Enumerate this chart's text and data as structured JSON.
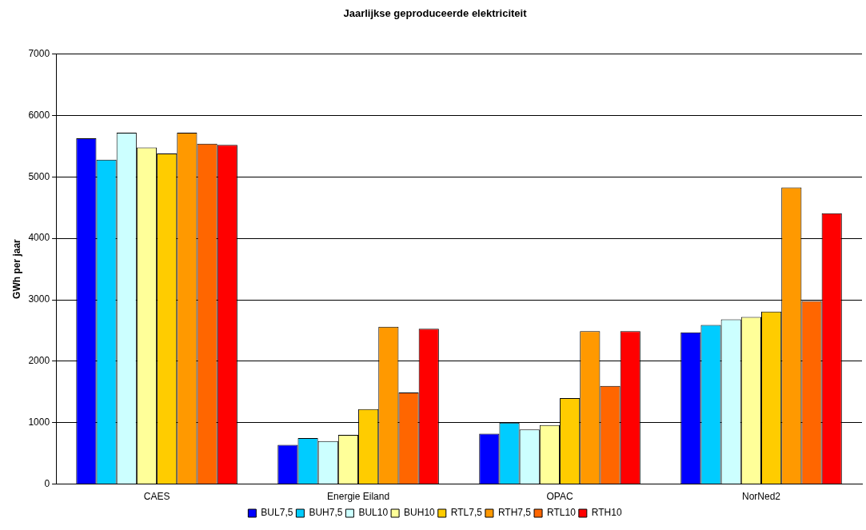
{
  "chart_data": {
    "type": "bar",
    "title": "Jaarlijkse geproduceerde elektriciteit",
    "ylabel": "GWh per jaar",
    "categories": [
      "CAES",
      "Energie Eiland",
      "OPAC",
      "NorNed2"
    ],
    "series": [
      {
        "name": "BUL7,5",
        "color": "#0000ff",
        "values": [
          5630,
          640,
          820,
          2470
        ]
      },
      {
        "name": "BUH7,5",
        "color": "#00ccff",
        "values": [
          5280,
          750,
          1000,
          2590
        ]
      },
      {
        "name": "BUL10",
        "color": "#ccffff",
        "values": [
          5720,
          700,
          890,
          2680
        ]
      },
      {
        "name": "BUH10",
        "color": "#ffff99",
        "values": [
          5480,
          800,
          960,
          2720
        ]
      },
      {
        "name": "RTL7,5",
        "color": "#ffcc00",
        "values": [
          5380,
          1220,
          1400,
          2810
        ]
      },
      {
        "name": "RTH7,5",
        "color": "#ff9900",
        "values": [
          5720,
          2560,
          2490,
          4830
        ]
      },
      {
        "name": "RTL10",
        "color": "#ff6600",
        "values": [
          5540,
          1490,
          1600,
          2980
        ]
      },
      {
        "name": "RTH10",
        "color": "#ff0000",
        "values": [
          5520,
          2530,
          2490,
          4410
        ]
      }
    ],
    "ylim": [
      0,
      7000
    ],
    "yticks": [
      0,
      1000,
      2000,
      3000,
      4000,
      5000,
      6000,
      7000
    ],
    "grid": "y",
    "legend": "bottom"
  }
}
